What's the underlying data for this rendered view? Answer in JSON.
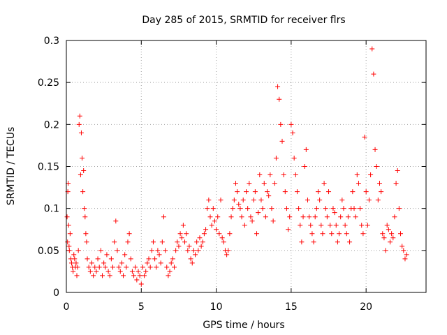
{
  "chart_data": {
    "type": "scatter",
    "title": "Day 285 of 2015, SRMTID for receiver flrs",
    "xlabel": "GPS time / hours",
    "ylabel": "SRMTID / TECUs",
    "xlim": [
      0,
      24
    ],
    "ylim": [
      0,
      0.3
    ],
    "xticks": [
      0,
      5,
      10,
      15,
      20
    ],
    "xtick_labels": [
      "0",
      "5",
      "10",
      "15",
      "20"
    ],
    "yticks": [
      0,
      0.05,
      0.1,
      0.15,
      0.2,
      0.25,
      0.3
    ],
    "ytick_labels": [
      "0",
      "0.05",
      "0.1",
      "0.15",
      "0.2",
      "0.25",
      "0.3"
    ],
    "grid": true,
    "marker": "+",
    "marker_color": "#ff0000",
    "series": [
      {
        "name": "SRMTID",
        "points": [
          [
            0.05,
            0.09
          ],
          [
            0.08,
            0.06
          ],
          [
            0.1,
            0.12
          ],
          [
            0.12,
            0.13
          ],
          [
            0.15,
            0.08
          ],
          [
            0.18,
            0.055
          ],
          [
            0.2,
            0.05
          ],
          [
            0.25,
            0.07
          ],
          [
            0.3,
            0.04
          ],
          [
            0.35,
            0.035
          ],
          [
            0.4,
            0.03
          ],
          [
            0.45,
            0.025
          ],
          [
            0.5,
            0.045
          ],
          [
            0.55,
            0.04
          ],
          [
            0.6,
            0.03
          ],
          [
            0.65,
            0.035
          ],
          [
            0.7,
            0.02
          ],
          [
            0.75,
            0.03
          ],
          [
            0.8,
            0.05
          ],
          [
            0.85,
            0.2
          ],
          [
            0.9,
            0.21
          ],
          [
            0.95,
            0.14
          ],
          [
            1.0,
            0.19
          ],
          [
            1.05,
            0.16
          ],
          [
            1.1,
            0.12
          ],
          [
            1.15,
            0.145
          ],
          [
            1.2,
            0.1
          ],
          [
            1.25,
            0.09
          ],
          [
            1.3,
            0.07
          ],
          [
            1.35,
            0.06
          ],
          [
            1.4,
            0.04
          ],
          [
            1.5,
            0.03
          ],
          [
            1.6,
            0.025
          ],
          [
            1.7,
            0.035
          ],
          [
            1.8,
            0.02
          ],
          [
            1.9,
            0.03
          ],
          [
            2.0,
            0.025
          ],
          [
            2.1,
            0.04
          ],
          [
            2.2,
            0.03
          ],
          [
            2.3,
            0.05
          ],
          [
            2.4,
            0.02
          ],
          [
            2.5,
            0.035
          ],
          [
            2.6,
            0.03
          ],
          [
            2.7,
            0.045
          ],
          [
            2.8,
            0.025
          ],
          [
            2.9,
            0.02
          ],
          [
            3.0,
            0.04
          ],
          [
            3.1,
            0.03
          ],
          [
            3.2,
            0.06
          ],
          [
            3.3,
            0.085
          ],
          [
            3.4,
            0.05
          ],
          [
            3.5,
            0.03
          ],
          [
            3.6,
            0.025
          ],
          [
            3.7,
            0.035
          ],
          [
            3.8,
            0.02
          ],
          [
            3.9,
            0.045
          ],
          [
            4.0,
            0.03
          ],
          [
            4.1,
            0.06
          ],
          [
            4.2,
            0.07
          ],
          [
            4.3,
            0.04
          ],
          [
            4.4,
            0.025
          ],
          [
            4.5,
            0.02
          ],
          [
            4.6,
            0.03
          ],
          [
            4.7,
            0.015
          ],
          [
            4.8,
            0.025
          ],
          [
            4.9,
            0.02
          ],
          [
            5.0,
            0.01
          ],
          [
            5.1,
            0.03
          ],
          [
            5.2,
            0.02
          ],
          [
            5.3,
            0.025
          ],
          [
            5.4,
            0.035
          ],
          [
            5.5,
            0.04
          ],
          [
            5.6,
            0.03
          ],
          [
            5.7,
            0.05
          ],
          [
            5.8,
            0.06
          ],
          [
            5.9,
            0.04
          ],
          [
            6.0,
            0.03
          ],
          [
            6.1,
            0.05
          ],
          [
            6.2,
            0.045
          ],
          [
            6.3,
            0.035
          ],
          [
            6.4,
            0.06
          ],
          [
            6.5,
            0.09
          ],
          [
            6.6,
            0.05
          ],
          [
            6.7,
            0.03
          ],
          [
            6.8,
            0.02
          ],
          [
            6.9,
            0.025
          ],
          [
            7.0,
            0.035
          ],
          [
            7.1,
            0.04
          ],
          [
            7.2,
            0.03
          ],
          [
            7.3,
            0.05
          ],
          [
            7.4,
            0.06
          ],
          [
            7.5,
            0.055
          ],
          [
            7.6,
            0.07
          ],
          [
            7.7,
            0.065
          ],
          [
            7.8,
            0.08
          ],
          [
            7.9,
            0.06
          ],
          [
            8.0,
            0.07
          ],
          [
            8.1,
            0.05
          ],
          [
            8.2,
            0.055
          ],
          [
            8.3,
            0.04
          ],
          [
            8.4,
            0.035
          ],
          [
            8.5,
            0.05
          ],
          [
            8.6,
            0.045
          ],
          [
            8.7,
            0.06
          ],
          [
            8.8,
            0.05
          ],
          [
            8.9,
            0.065
          ],
          [
            9.0,
            0.055
          ],
          [
            9.1,
            0.06
          ],
          [
            9.2,
            0.07
          ],
          [
            9.3,
            0.075
          ],
          [
            9.4,
            0.1
          ],
          [
            9.5,
            0.11
          ],
          [
            9.6,
            0.09
          ],
          [
            9.7,
            0.08
          ],
          [
            9.8,
            0.1
          ],
          [
            9.9,
            0.085
          ],
          [
            10.0,
            0.075
          ],
          [
            10.1,
            0.09
          ],
          [
            10.2,
            0.07
          ],
          [
            10.3,
            0.11
          ],
          [
            10.4,
            0.065
          ],
          [
            10.5,
            0.06
          ],
          [
            10.6,
            0.05
          ],
          [
            10.7,
            0.045
          ],
          [
            10.8,
            0.05
          ],
          [
            10.9,
            0.07
          ],
          [
            11.0,
            0.09
          ],
          [
            11.1,
            0.1
          ],
          [
            11.2,
            0.11
          ],
          [
            11.3,
            0.13
          ],
          [
            11.4,
            0.12
          ],
          [
            11.5,
            0.105
          ],
          [
            11.6,
            0.1
          ],
          [
            11.7,
            0.09
          ],
          [
            11.8,
            0.11
          ],
          [
            11.9,
            0.08
          ],
          [
            12.0,
            0.12
          ],
          [
            12.1,
            0.1
          ],
          [
            12.2,
            0.13
          ],
          [
            12.3,
            0.09
          ],
          [
            12.4,
            0.085
          ],
          [
            12.5,
            0.11
          ],
          [
            12.6,
            0.12
          ],
          [
            12.7,
            0.07
          ],
          [
            12.8,
            0.095
          ],
          [
            12.9,
            0.14
          ],
          [
            13.0,
            0.11
          ],
          [
            13.1,
            0.1
          ],
          [
            13.2,
            0.13
          ],
          [
            13.3,
            0.09
          ],
          [
            13.4,
            0.12
          ],
          [
            13.5,
            0.115
          ],
          [
            13.6,
            0.14
          ],
          [
            13.7,
            0.1
          ],
          [
            13.8,
            0.085
          ],
          [
            13.9,
            0.13
          ],
          [
            14.0,
            0.16
          ],
          [
            14.1,
            0.245
          ],
          [
            14.2,
            0.23
          ],
          [
            14.3,
            0.2
          ],
          [
            14.4,
            0.18
          ],
          [
            14.5,
            0.14
          ],
          [
            14.6,
            0.12
          ],
          [
            14.7,
            0.1
          ],
          [
            14.8,
            0.075
          ],
          [
            14.9,
            0.09
          ],
          [
            15.0,
            0.2
          ],
          [
            15.1,
            0.19
          ],
          [
            15.2,
            0.16
          ],
          [
            15.3,
            0.14
          ],
          [
            15.4,
            0.12
          ],
          [
            15.5,
            0.1
          ],
          [
            15.6,
            0.08
          ],
          [
            15.7,
            0.06
          ],
          [
            15.8,
            0.09
          ],
          [
            15.9,
            0.15
          ],
          [
            16.0,
            0.17
          ],
          [
            16.1,
            0.11
          ],
          [
            16.2,
            0.09
          ],
          [
            16.3,
            0.08
          ],
          [
            16.4,
            0.07
          ],
          [
            16.5,
            0.06
          ],
          [
            16.6,
            0.09
          ],
          [
            16.7,
            0.1
          ],
          [
            16.8,
            0.12
          ],
          [
            16.9,
            0.11
          ],
          [
            17.0,
            0.08
          ],
          [
            17.1,
            0.07
          ],
          [
            17.2,
            0.13
          ],
          [
            17.3,
            0.1
          ],
          [
            17.4,
            0.09
          ],
          [
            17.5,
            0.12
          ],
          [
            17.6,
            0.08
          ],
          [
            17.7,
            0.07
          ],
          [
            17.8,
            0.1
          ],
          [
            17.9,
            0.095
          ],
          [
            18.0,
            0.08
          ],
          [
            18.1,
            0.06
          ],
          [
            18.2,
            0.07
          ],
          [
            18.3,
            0.09
          ],
          [
            18.4,
            0.11
          ],
          [
            18.5,
            0.1
          ],
          [
            18.6,
            0.08
          ],
          [
            18.7,
            0.07
          ],
          [
            18.8,
            0.09
          ],
          [
            18.9,
            0.06
          ],
          [
            19.0,
            0.1
          ],
          [
            19.1,
            0.12
          ],
          [
            19.2,
            0.1
          ],
          [
            19.3,
            0.09
          ],
          [
            19.4,
            0.14
          ],
          [
            19.5,
            0.13
          ],
          [
            19.6,
            0.1
          ],
          [
            19.7,
            0.08
          ],
          [
            19.8,
            0.07
          ],
          [
            19.9,
            0.185
          ],
          [
            20.0,
            0.12
          ],
          [
            20.1,
            0.08
          ],
          [
            20.2,
            0.11
          ],
          [
            20.3,
            0.14
          ],
          [
            20.4,
            0.29
          ],
          [
            20.5,
            0.26
          ],
          [
            20.6,
            0.17
          ],
          [
            20.7,
            0.15
          ],
          [
            20.8,
            0.11
          ],
          [
            20.9,
            0.13
          ],
          [
            21.0,
            0.12
          ],
          [
            21.1,
            0.07
          ],
          [
            21.2,
            0.065
          ],
          [
            21.3,
            0.05
          ],
          [
            21.4,
            0.08
          ],
          [
            21.5,
            0.075
          ],
          [
            21.6,
            0.06
          ],
          [
            21.7,
            0.07
          ],
          [
            21.8,
            0.065
          ],
          [
            21.9,
            0.09
          ],
          [
            22.0,
            0.13
          ],
          [
            22.1,
            0.145
          ],
          [
            22.2,
            0.1
          ],
          [
            22.3,
            0.07
          ],
          [
            22.4,
            0.055
          ],
          [
            22.5,
            0.05
          ],
          [
            22.6,
            0.04
          ],
          [
            22.7,
            0.045
          ]
        ]
      }
    ]
  }
}
